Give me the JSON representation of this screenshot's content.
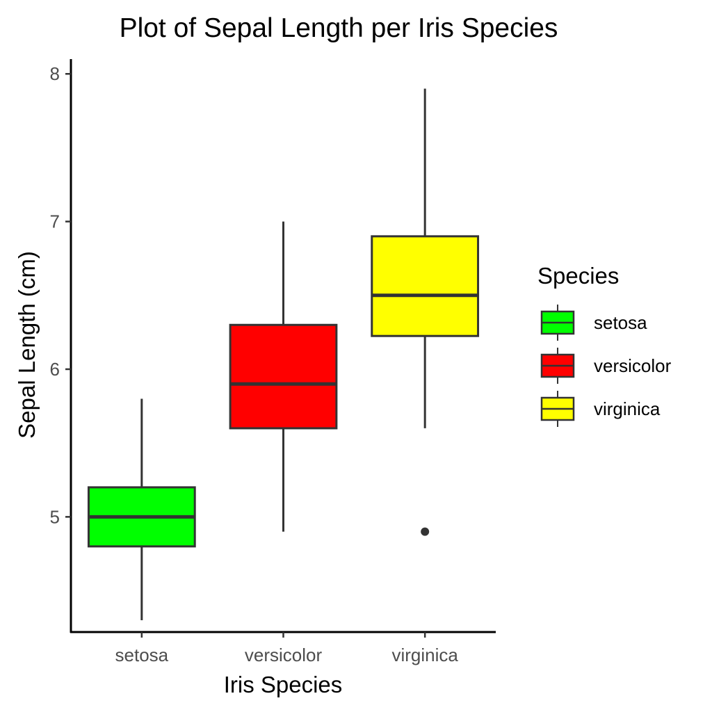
{
  "chart_data": {
    "type": "boxplot",
    "title": "Plot of Sepal Length  per Iris Species",
    "xlabel": "Iris Species",
    "ylabel": "Sepal Length (cm)",
    "categories": [
      "setosa",
      "versicolor",
      "virginica"
    ],
    "ylim": [
      4.22,
      8.1
    ],
    "yticks": [
      5,
      6,
      7,
      8
    ],
    "grid": false,
    "legend": {
      "title": "Species",
      "placement": "right",
      "entries": [
        "setosa",
        "versicolor",
        "virginica"
      ]
    },
    "series": [
      {
        "name": "setosa",
        "color": "#00ff00",
        "min": 4.3,
        "q1": 4.8,
        "median": 5.0,
        "q3": 5.2,
        "max": 5.8,
        "outliers": []
      },
      {
        "name": "versicolor",
        "color": "#ff0000",
        "min": 4.9,
        "q1": 5.6,
        "median": 5.9,
        "q3": 6.3,
        "max": 7.0,
        "outliers": []
      },
      {
        "name": "virginica",
        "color": "#ffff00",
        "min": 5.6,
        "q1": 6.225,
        "median": 6.5,
        "q3": 6.9,
        "max": 7.9,
        "outliers": [
          4.9
        ]
      }
    ],
    "line_color": "#333333",
    "axis_color": "#000000"
  }
}
